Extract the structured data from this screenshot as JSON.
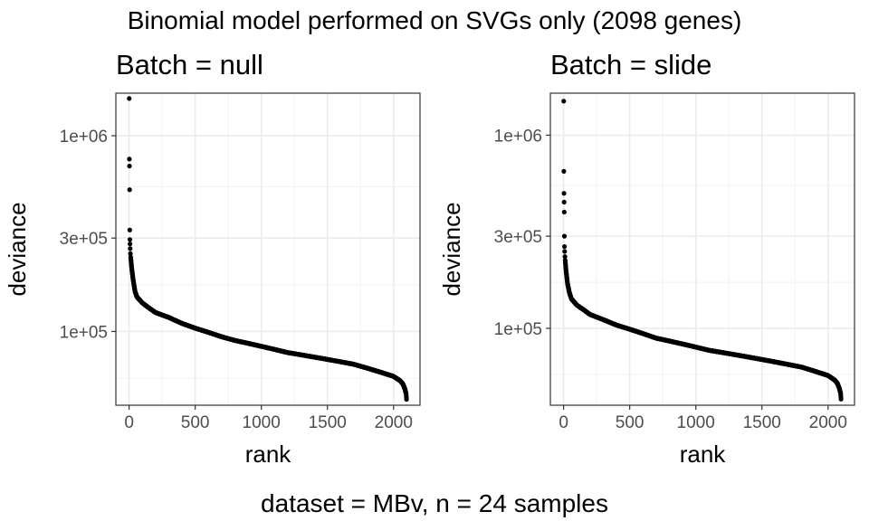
{
  "figure": {
    "title": "Binomial model performed on SVGs only (2098 genes)",
    "caption": "dataset = MBv, n = 24 samples"
  },
  "chart_data": [
    {
      "type": "scatter",
      "title": "Batch = null",
      "xlabel": "rank",
      "ylabel": "deviance",
      "y_scale": "log10",
      "n_points": 2098,
      "xlim": [
        -100,
        2200
      ],
      "ylim": [
        42000,
        1650000
      ],
      "x_ticks": [
        0,
        500,
        1000,
        1500,
        2000
      ],
      "x_tick_labels": [
        "0",
        "500",
        "1000",
        "1500",
        "2000"
      ],
      "y_ticks": [
        100000,
        300000,
        1000000
      ],
      "y_tick_labels": [
        "1e+05",
        "3e+05",
        "1e+06"
      ],
      "grid": true,
      "point_color": "#000000",
      "top_points": [
        {
          "rank": 1,
          "deviance": 1550000
        },
        {
          "rank": 2,
          "deviance": 760000
        },
        {
          "rank": 3,
          "deviance": 700000
        },
        {
          "rank": 4,
          "deviance": 530000
        },
        {
          "rank": 5,
          "deviance": 330000
        },
        {
          "rank": 6,
          "deviance": 295000
        },
        {
          "rank": 7,
          "deviance": 280000
        },
        {
          "rank": 8,
          "deviance": 265000
        },
        {
          "rank": 10,
          "deviance": 250000
        }
      ],
      "trend": [
        [
          12,
          240000
        ],
        [
          20,
          210000
        ],
        [
          30,
          185000
        ],
        [
          45,
          160000
        ],
        [
          60,
          150000
        ],
        [
          100,
          140000
        ],
        [
          150,
          132000
        ],
        [
          200,
          125000
        ],
        [
          300,
          118000
        ],
        [
          400,
          110000
        ],
        [
          500,
          104000
        ],
        [
          600,
          99000
        ],
        [
          700,
          94000
        ],
        [
          800,
          90000
        ],
        [
          900,
          87000
        ],
        [
          1000,
          84000
        ],
        [
          1100,
          81000
        ],
        [
          1200,
          78000
        ],
        [
          1300,
          76000
        ],
        [
          1400,
          74000
        ],
        [
          1500,
          72000
        ],
        [
          1600,
          70000
        ],
        [
          1700,
          68000
        ],
        [
          1800,
          65000
        ],
        [
          1900,
          62000
        ],
        [
          2000,
          59000
        ],
        [
          2050,
          56000
        ],
        [
          2070,
          54000
        ],
        [
          2085,
          51000
        ],
        [
          2095,
          48000
        ],
        [
          2098,
          45000
        ]
      ]
    },
    {
      "type": "scatter",
      "title": "Batch = slide",
      "xlabel": "rank",
      "ylabel": "deviance",
      "y_scale": "log10",
      "n_points": 2098,
      "xlim": [
        -100,
        2200
      ],
      "ylim": [
        40000,
        1650000
      ],
      "x_ticks": [
        0,
        500,
        1000,
        1500,
        2000
      ],
      "x_tick_labels": [
        "0",
        "500",
        "1000",
        "1500",
        "2000"
      ],
      "y_ticks": [
        100000,
        300000,
        1000000
      ],
      "y_tick_labels": [
        "1e+05",
        "3e+05",
        "1e+06"
      ],
      "grid": true,
      "point_color": "#000000",
      "top_points": [
        {
          "rank": 1,
          "deviance": 1500000
        },
        {
          "rank": 2,
          "deviance": 650000
        },
        {
          "rank": 3,
          "deviance": 500000
        },
        {
          "rank": 4,
          "deviance": 450000
        },
        {
          "rank": 5,
          "deviance": 400000
        },
        {
          "rank": 6,
          "deviance": 300000
        },
        {
          "rank": 7,
          "deviance": 265000
        },
        {
          "rank": 8,
          "deviance": 250000
        },
        {
          "rank": 10,
          "deviance": 235000
        }
      ],
      "trend": [
        [
          12,
          225000
        ],
        [
          20,
          195000
        ],
        [
          30,
          170000
        ],
        [
          45,
          152000
        ],
        [
          60,
          142000
        ],
        [
          100,
          132000
        ],
        [
          150,
          125000
        ],
        [
          200,
          118000
        ],
        [
          300,
          111000
        ],
        [
          400,
          104000
        ],
        [
          500,
          99000
        ],
        [
          600,
          94000
        ],
        [
          700,
          89000
        ],
        [
          800,
          86000
        ],
        [
          900,
          83000
        ],
        [
          1000,
          80000
        ],
        [
          1100,
          77000
        ],
        [
          1200,
          75000
        ],
        [
          1300,
          73000
        ],
        [
          1400,
          71000
        ],
        [
          1500,
          69000
        ],
        [
          1600,
          67000
        ],
        [
          1700,
          65000
        ],
        [
          1800,
          63000
        ],
        [
          1900,
          60000
        ],
        [
          2000,
          57000
        ],
        [
          2050,
          54000
        ],
        [
          2070,
          52000
        ],
        [
          2085,
          49000
        ],
        [
          2095,
          46000
        ],
        [
          2098,
          43000
        ]
      ]
    }
  ]
}
